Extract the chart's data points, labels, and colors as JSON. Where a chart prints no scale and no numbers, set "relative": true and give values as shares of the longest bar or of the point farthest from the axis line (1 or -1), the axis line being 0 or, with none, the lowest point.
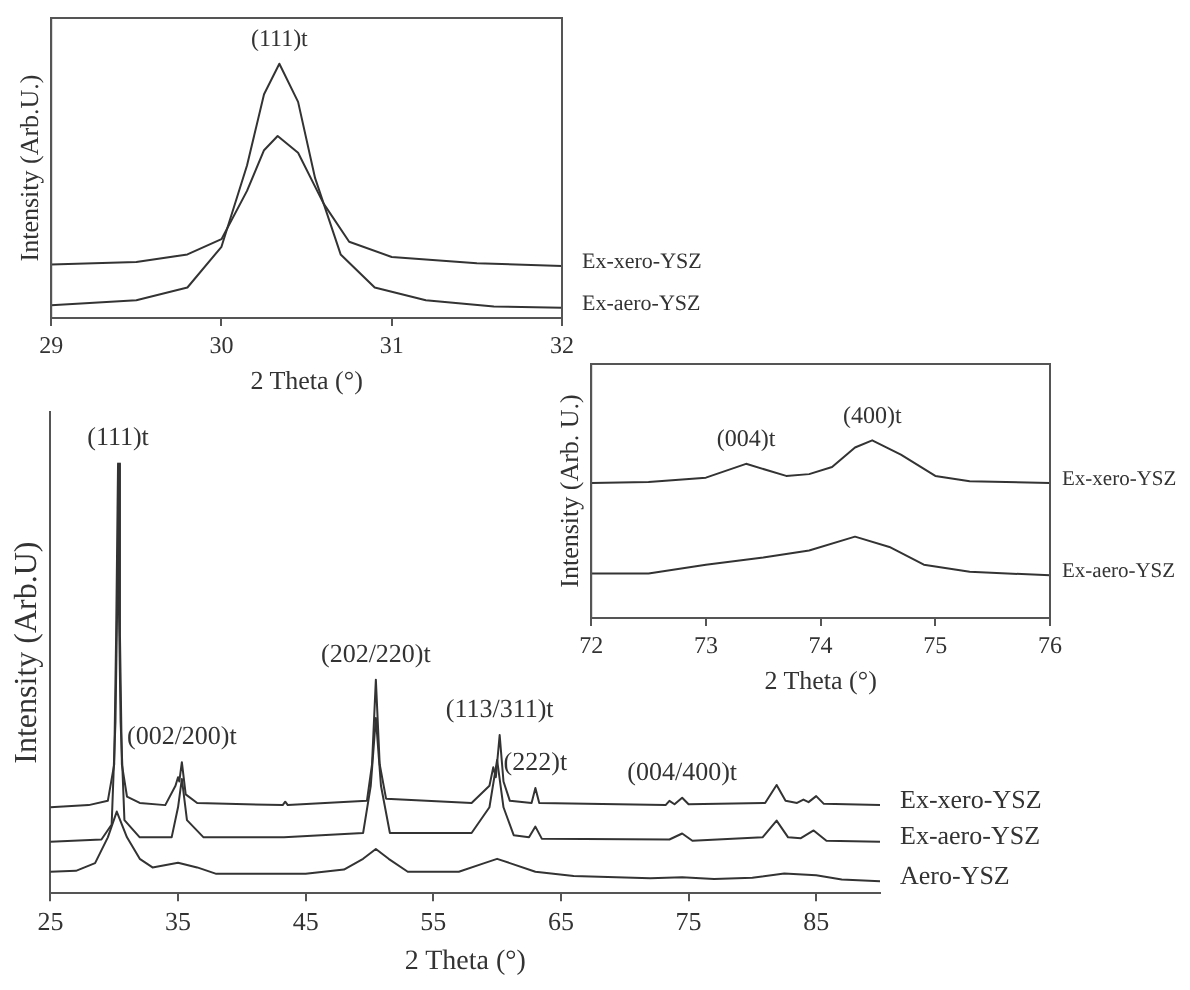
{
  "chart_data": [
    {
      "type": "line",
      "relative": true,
      "xlabel": "2 Theta (°)",
      "ylabel": "Intensity (Arb.U.)",
      "xlim": [
        29,
        32
      ],
      "xticks": [
        29,
        30,
        31,
        32
      ],
      "grid": false,
      "legend": false,
      "marker": "none",
      "tick_labels": "x",
      "series": [
        {
          "name": "Ex-xero-YSZ",
          "color": "#333333",
          "x": [
            29,
            29.5,
            29.8,
            30,
            30.15,
            30.25,
            30.33,
            30.45,
            30.6,
            30.75,
            31,
            31.5,
            32
          ],
          "values": [
            0.21,
            0.22,
            0.25,
            0.31,
            0.5,
            0.66,
            0.716,
            0.65,
            0.45,
            0.3,
            0.24,
            0.215,
            0.205
          ]
        },
        {
          "name": "Ex-aero-YSZ",
          "color": "#333333",
          "x": [
            29,
            29.5,
            29.8,
            30,
            30.15,
            30.25,
            30.34,
            30.45,
            30.55,
            30.7,
            30.9,
            31.2,
            31.6,
            32
          ],
          "values": [
            0.05,
            0.07,
            0.12,
            0.28,
            0.6,
            0.88,
            1,
            0.85,
            0.55,
            0.25,
            0.12,
            0.07,
            0.045,
            0.04
          ]
        }
      ],
      "annotations": [
        {
          "text": "(111)t",
          "x": 30.34,
          "y": 1
        }
      ]
    },
    {
      "type": "line",
      "relative": true,
      "xlabel": "2 Theta (°)",
      "ylabel": "Intensity (Arb. U.)",
      "xlim": [
        72,
        76
      ],
      "xticks": [
        72,
        73,
        74,
        75,
        76
      ],
      "grid": false,
      "legend": false,
      "marker": "none",
      "tick_labels": "x",
      "series": [
        {
          "name": "Ex-xero-YSZ",
          "color": "#333333",
          "x": [
            72,
            72.5,
            73,
            73.35,
            73.7,
            73.9,
            74.1,
            74.3,
            74.45,
            74.7,
            75,
            75.3,
            76
          ],
          "values": [
            0.76,
            0.765,
            0.79,
            0.868,
            0.8,
            0.81,
            0.85,
            0.96,
            1,
            0.92,
            0.8,
            0.77,
            0.76
          ]
        },
        {
          "name": "Ex-aero-YSZ",
          "color": "#333333",
          "x": [
            72,
            72.5,
            73,
            73.5,
            73.9,
            74.3,
            74.6,
            74.9,
            75.3,
            76
          ],
          "values": [
            0.25,
            0.25,
            0.3,
            0.34,
            0.38,
            0.458,
            0.4,
            0.3,
            0.26,
            0.24
          ]
        }
      ],
      "annotations": [
        {
          "text": "(004)t",
          "x": 73.35,
          "y": 0.868
        },
        {
          "text": "(400)t",
          "x": 74.45,
          "y": 1
        }
      ]
    },
    {
      "type": "line",
      "relative": true,
      "xlabel": "2 Theta (°)",
      "ylabel": "Intensity (Arb.U)",
      "xlim": [
        25,
        90
      ],
      "xticks": [
        25,
        35,
        45,
        55,
        65,
        75,
        85
      ],
      "grid": false,
      "legend": false,
      "marker": "none",
      "tick_labels": "x",
      "series": [
        {
          "name": "Ex-xero-YSZ",
          "color": "#333333",
          "x": [
            25,
            28,
            29.5,
            30,
            30.15,
            30.3,
            30.45,
            30.6,
            31,
            32,
            34,
            34.8,
            35,
            35.1,
            35.3,
            35.6,
            36.5,
            43.2,
            43.4,
            43.6,
            49.8,
            50.2,
            50.5,
            50.8,
            51.3,
            58,
            59.4,
            59.7,
            59.9,
            60.2,
            60.5,
            61,
            62.7,
            63,
            63.3,
            73.2,
            73.5,
            73.9,
            74.5,
            75,
            81,
            81.9,
            82.6,
            83.5,
            84,
            84.4,
            85,
            85.6,
            90
          ],
          "values": [
            0.2,
            0.205,
            0.215,
            0.3,
            0.6,
            1,
            0.6,
            0.3,
            0.225,
            0.21,
            0.205,
            0.25,
            0.27,
            0.26,
            0.305,
            0.23,
            0.21,
            0.205,
            0.213,
            0.205,
            0.215,
            0.3,
            0.497,
            0.3,
            0.22,
            0.21,
            0.25,
            0.293,
            0.27,
            0.368,
            0.26,
            0.215,
            0.21,
            0.245,
            0.21,
            0.205,
            0.215,
            0.207,
            0.222,
            0.207,
            0.21,
            0.252,
            0.215,
            0.21,
            0.218,
            0.212,
            0.226,
            0.208,
            0.205
          ]
        },
        {
          "name": "Ex-aero-YSZ",
          "color": "#333333",
          "x": [
            25,
            29,
            29.8,
            30.1,
            30.3,
            30.5,
            30.8,
            32,
            34.5,
            35,
            35.3,
            35.7,
            37,
            43.3,
            49.5,
            50.1,
            50.5,
            50.9,
            51.6,
            58,
            59.4,
            60,
            60.5,
            61.3,
            62.5,
            63,
            63.5,
            73.5,
            74.5,
            75.3,
            80.8,
            81.9,
            82.8,
            83.8,
            84.8,
            85.8,
            90
          ],
          "values": [
            0.12,
            0.125,
            0.16,
            0.4,
            0.808,
            0.4,
            0.17,
            0.13,
            0.13,
            0.2,
            0.266,
            0.17,
            0.13,
            0.13,
            0.14,
            0.25,
            0.408,
            0.25,
            0.14,
            0.14,
            0.2,
            0.31,
            0.2,
            0.135,
            0.13,
            0.155,
            0.127,
            0.125,
            0.139,
            0.122,
            0.13,
            0.169,
            0.13,
            0.128,
            0.146,
            0.122,
            0.12
          ]
        },
        {
          "name": "Aero-YSZ",
          "color": "#333333",
          "x": [
            25,
            27,
            28.5,
            29.5,
            30.2,
            31,
            32,
            33,
            35,
            36.5,
            38,
            45,
            48,
            49.5,
            50.5,
            51.5,
            53,
            57,
            59,
            60,
            61,
            63,
            66,
            72,
            74.5,
            77,
            80,
            82.5,
            85,
            87,
            90
          ],
          "values": [
            0.05,
            0.052,
            0.07,
            0.13,
            0.19,
            0.13,
            0.08,
            0.06,
            0.071,
            0.06,
            0.045,
            0.045,
            0.055,
            0.08,
            0.103,
            0.08,
            0.05,
            0.05,
            0.07,
            0.08,
            0.07,
            0.05,
            0.04,
            0.035,
            0.037,
            0.033,
            0.036,
            0.046,
            0.042,
            0.032,
            0.028
          ]
        }
      ],
      "annotations": [
        {
          "text": "(111)t",
          "x": 30.3,
          "y": 1
        },
        {
          "text": "(002/200)t",
          "x": 35.3,
          "y": 0.305
        },
        {
          "text": "(202/220)t",
          "x": 50.5,
          "y": 0.497
        },
        {
          "text": "(113/311)t",
          "x": 60.2,
          "y": 0.368
        },
        {
          "text": "(222)t",
          "x": 63,
          "y": 0.245
        },
        {
          "text": "(004/400)t",
          "x": 74.5,
          "y": 0.222
        }
      ]
    }
  ]
}
